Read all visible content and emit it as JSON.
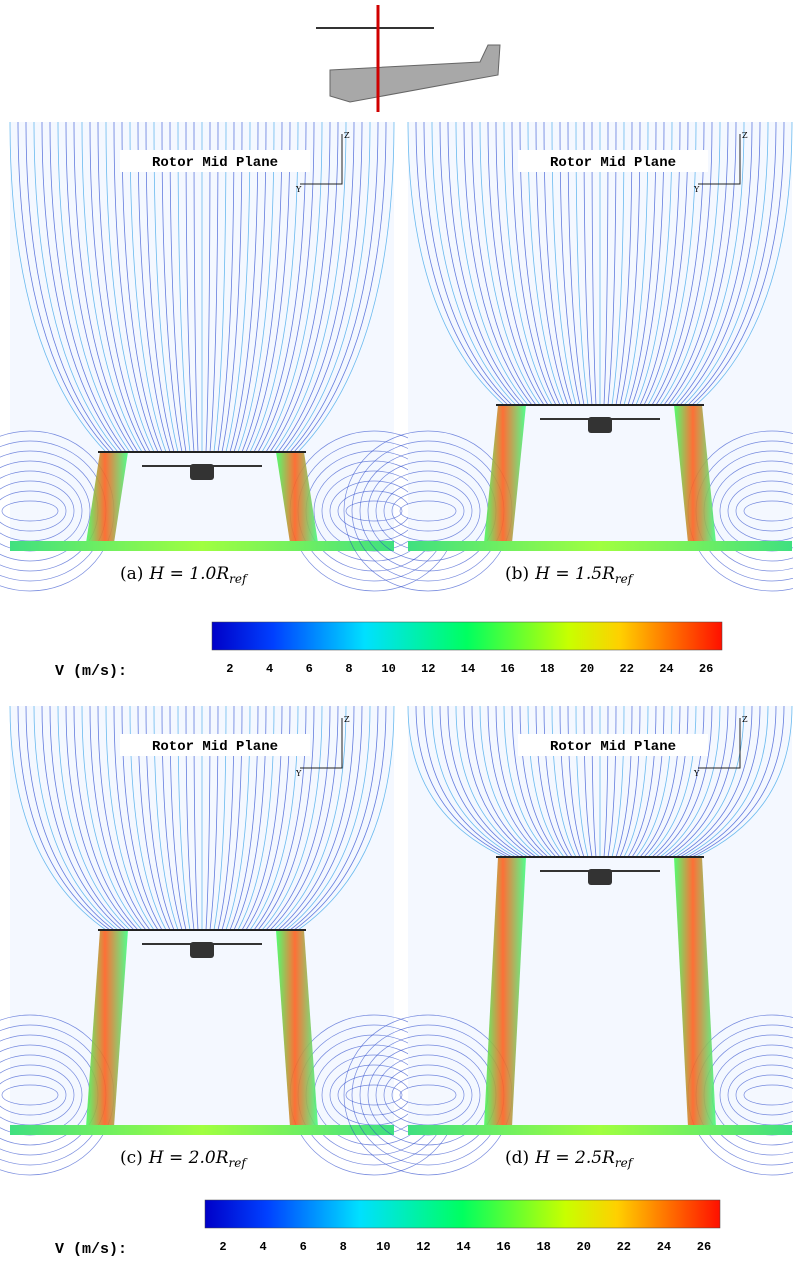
{
  "figure": {
    "panels": [
      {
        "title": "Rotor Mid Plane",
        "axis_z": "Z",
        "axis_y": "Y",
        "caption": {
          "tag": "(a)",
          "math": "H = 1.0R",
          "subscript": "ref"
        }
      },
      {
        "title": "Rotor Mid Plane",
        "axis_z": "Z",
        "axis_y": "Y",
        "caption": {
          "tag": "(b)",
          "math": "H = 1.5R",
          "subscript": "ref"
        }
      },
      {
        "title": "Rotor Mid Plane",
        "axis_z": "Z",
        "axis_y": "Y",
        "caption": {
          "tag": "(c)",
          "math": "H = 2.0R",
          "subscript": "ref"
        }
      },
      {
        "title": "Rotor Mid Plane",
        "axis_z": "Z",
        "axis_y": "Y",
        "caption": {
          "tag": "(d)",
          "math": "H = 2.5R",
          "subscript": "ref"
        }
      }
    ],
    "colorbars": [
      {
        "label": "V (m/s):",
        "range": [
          1.1,
          26.8
        ],
        "ticks": [
          2,
          4,
          6,
          8,
          10,
          12,
          14,
          16,
          18,
          20,
          22,
          24,
          26
        ]
      },
      {
        "label": "V (m/s):",
        "range": [
          1.1,
          26.8
        ],
        "ticks": [
          2,
          4,
          6,
          8,
          10,
          12,
          14,
          16,
          18,
          20,
          22,
          24,
          26
        ]
      }
    ]
  }
}
